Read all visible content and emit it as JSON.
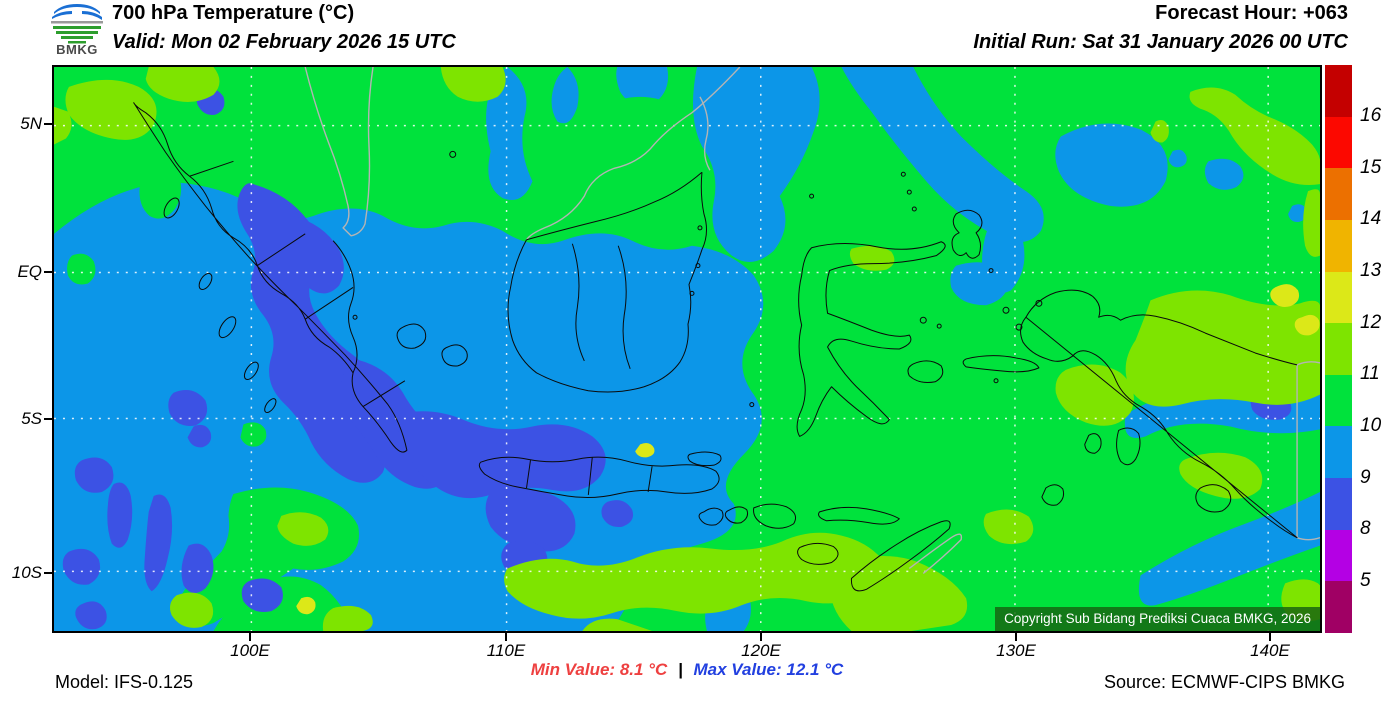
{
  "header": {
    "logo_text": "BMKG",
    "title": "700 hPa Temperature (°C)",
    "valid": "Valid: Mon 02 February 2026 15 UTC",
    "forecast_hour": "Forecast Hour: +063",
    "initial_run": "Initial Run: Sat 31 January 2026 00 UTC"
  },
  "map": {
    "lat_labels": [
      "5N",
      "EQ",
      "5S",
      "10S"
    ],
    "lon_labels": [
      "100E",
      "110E",
      "120E",
      "130E",
      "140E"
    ],
    "copyright": "Copyright Sub Bidang Prediksi Cuaca BMKG, 2026"
  },
  "colorbar": {
    "labels": [
      "16",
      "15",
      "14",
      "13",
      "12",
      "11",
      "10",
      "9",
      "8",
      "5"
    ],
    "colors": [
      "#c40000",
      "#fc0800",
      "#ec7000",
      "#f0b400",
      "#dce818",
      "#7ee400",
      "#00e23c",
      "#0c96e8",
      "#3c52e4",
      "#b400e4",
      "#a00064"
    ]
  },
  "footer": {
    "model": "Model: IFS-0.125",
    "min_label": "Min Value: 8.1 °C",
    "separator": "|",
    "max_label": "Max Value: 12.1 °C",
    "source": "Source: ECMWF-CIPS BMKG",
    "min_color": "#ee4040",
    "max_color": "#2240e0"
  }
}
